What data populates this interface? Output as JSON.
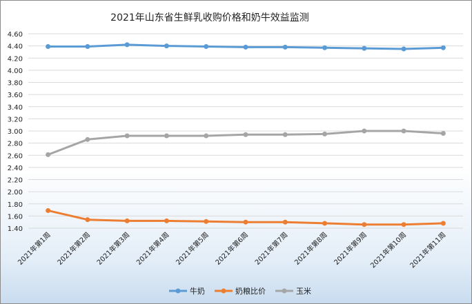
{
  "chart_data": {
    "type": "line",
    "title": "2021年山东省生鲜乳收购价格和奶牛效益监测",
    "xlabel": "",
    "ylabel": "",
    "ylim": [
      1.4,
      4.6
    ],
    "ytick_step": 0.2,
    "grid": true,
    "legend_placement": "bottom",
    "categories": [
      "2021年第1周",
      "2021年第2周",
      "2021年第3周",
      "2021年第4周",
      "2021年第5周",
      "2021年第6周",
      "2021年第7周",
      "2021年第8周",
      "2021年第9周",
      "2021年第10周",
      "2021年第11周"
    ],
    "series": [
      {
        "name": "牛奶",
        "color": "#5b9bd5",
        "values": [
          4.39,
          4.39,
          4.42,
          4.4,
          4.39,
          4.38,
          4.38,
          4.37,
          4.36,
          4.35,
          4.37
        ]
      },
      {
        "name": "奶粮比价",
        "color": "#ed7d31",
        "values": [
          1.69,
          1.54,
          1.52,
          1.52,
          1.51,
          1.5,
          1.5,
          1.48,
          1.46,
          1.46,
          1.48
        ]
      },
      {
        "name": "玉米",
        "color": "#a5a5a5",
        "values": [
          2.61,
          2.86,
          2.92,
          2.92,
          2.92,
          2.94,
          2.94,
          2.95,
          3.0,
          3.0,
          2.96
        ]
      }
    ]
  }
}
